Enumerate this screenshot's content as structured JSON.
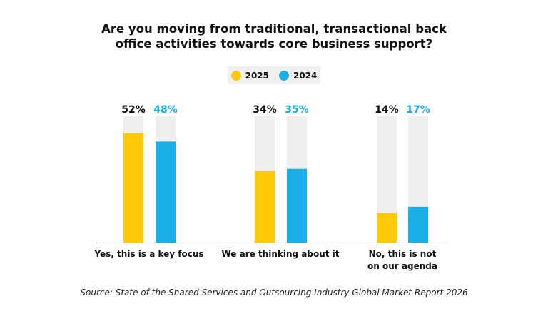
{
  "chart_data": {
    "type": "bar",
    "title": "Are you moving from traditional, transactional back office activities towards core business support?",
    "title_lines": [
      "Are you moving from traditional, transactional back",
      "office activities towards core business support?"
    ],
    "categories": [
      [
        "Yes, this is a key focus"
      ],
      [
        "We are thinking about it"
      ],
      [
        "No, this is not",
        "on our agenda"
      ]
    ],
    "series": [
      {
        "name": "2025",
        "color": "#FFC907",
        "values": [
          52,
          34,
          14
        ],
        "labels": [
          "52%",
          "34%",
          "14%"
        ],
        "label_color": "#111111"
      },
      {
        "name": "2024",
        "color": "#1AAFE6",
        "values": [
          48,
          35,
          17
        ],
        "labels": [
          "48%",
          "35%",
          "17%"
        ],
        "label_color": "#1AAFE6"
      }
    ],
    "ylim": [
      0,
      60
    ],
    "track_color": "#EFEFEF",
    "grid": false,
    "legend_position": "top-center",
    "source": "Source: State of the Shared Services and Outsourcing Industry Global Market Report 2026"
  }
}
